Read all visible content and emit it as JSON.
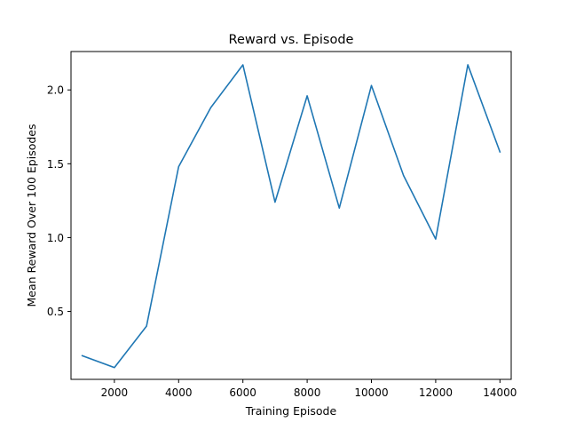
{
  "chart_data": {
    "type": "line",
    "title": "Reward vs. Episode",
    "xlabel": "Training Episode",
    "ylabel": "Mean Reward Over 100 Episodes",
    "xlim": [
      650,
      14350
    ],
    "ylim": [
      0.04,
      2.26
    ],
    "xticks": [
      2000,
      4000,
      6000,
      8000,
      10000,
      12000,
      14000
    ],
    "xtick_labels": [
      "2000",
      "4000",
      "6000",
      "8000",
      "10000",
      "12000",
      "14000"
    ],
    "yticks": [
      0.5,
      1.0,
      1.5,
      2.0
    ],
    "ytick_labels": [
      "0.5",
      "1.0",
      "1.5",
      "2.0"
    ],
    "grid": false,
    "legend": "none",
    "series": [
      {
        "color": "#1f77b4",
        "x": [
          1000,
          2000,
          3000,
          4000,
          5000,
          6000,
          7000,
          8000,
          9000,
          10000,
          11000,
          12000,
          13000,
          14000
        ],
        "y": [
          0.2,
          0.12,
          0.4,
          1.48,
          1.88,
          2.17,
          1.24,
          1.96,
          1.2,
          2.03,
          1.42,
          0.99,
          2.17,
          1.58
        ]
      }
    ]
  }
}
